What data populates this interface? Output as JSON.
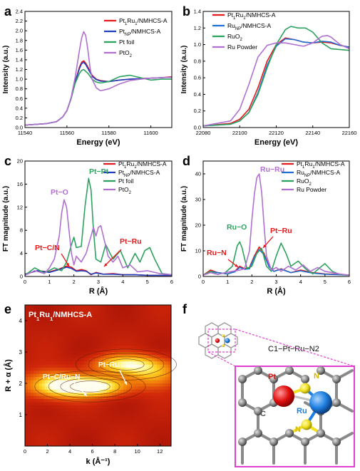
{
  "figure": {
    "panel_letters": [
      "a",
      "b",
      "c",
      "d",
      "e",
      "f"
    ]
  },
  "chart_data": [
    {
      "panel": "a",
      "type": "line",
      "xlabel": "Energy (eV)",
      "ylabel": "Intensity (a.u.)",
      "xlim": [
        11540,
        11610
      ],
      "ylim": [
        0,
        2.4
      ],
      "xticks": [
        "11540",
        "11560",
        "11580",
        "11600"
      ],
      "yticks": [
        "0.0",
        "0.2",
        "0.4",
        "0.6",
        "0.8",
        "1.0",
        "1.2",
        "1.4",
        "1.6",
        "1.8",
        "2.0",
        "2.2",
        "2.4"
      ],
      "legend": "top-right",
      "series": [
        {
          "name": "Pt1Ru1/NMHCS-A",
          "color": "#e41a1c",
          "x": [
            11540,
            11550,
            11555,
            11558,
            11560,
            11562,
            11564,
            11566,
            11567,
            11568,
            11569,
            11570,
            11572,
            11574,
            11576,
            11580,
            11585,
            11590,
            11595,
            11600,
            11605,
            11610
          ],
          "y": [
            0.05,
            0.08,
            0.12,
            0.22,
            0.35,
            0.6,
            0.95,
            1.25,
            1.35,
            1.38,
            1.33,
            1.25,
            1.08,
            1.0,
            0.97,
            0.95,
            0.98,
            1.0,
            1.01,
            1.02,
            1.03,
            1.05
          ]
        },
        {
          "name": "PtNP/NMHCS-A",
          "color": "#1f3fbf",
          "x": [
            11540,
            11550,
            11555,
            11558,
            11560,
            11562,
            11564,
            11566,
            11567,
            11568,
            11569,
            11570,
            11572,
            11574,
            11576,
            11580,
            11585,
            11590,
            11595,
            11600,
            11605,
            11610
          ],
          "y": [
            0.05,
            0.08,
            0.12,
            0.22,
            0.35,
            0.6,
            0.95,
            1.22,
            1.32,
            1.35,
            1.3,
            1.22,
            1.06,
            0.99,
            0.96,
            0.95,
            0.98,
            1.0,
            1.01,
            1.02,
            1.03,
            1.04
          ]
        },
        {
          "name": "Pt foil",
          "color": "#2ca25f",
          "x": [
            11540,
            11550,
            11555,
            11558,
            11560,
            11562,
            11564,
            11566,
            11567,
            11568,
            11570,
            11572,
            11574,
            11576,
            11580,
            11585,
            11590,
            11595,
            11600,
            11605,
            11610
          ],
          "y": [
            0.05,
            0.08,
            0.12,
            0.22,
            0.35,
            0.6,
            0.92,
            1.12,
            1.18,
            1.2,
            1.12,
            1.0,
            0.94,
            0.92,
            0.95,
            1.05,
            1.08,
            1.03,
            0.98,
            1.0,
            1.0
          ]
        },
        {
          "name": "PtO2",
          "color": "#b070d0",
          "x": [
            11540,
            11550,
            11555,
            11558,
            11560,
            11562,
            11564,
            11566,
            11567,
            11568,
            11569,
            11570,
            11571,
            11572,
            11574,
            11576,
            11580,
            11585,
            11590,
            11595,
            11600,
            11605,
            11610
          ],
          "y": [
            0.05,
            0.08,
            0.12,
            0.22,
            0.35,
            0.62,
            1.05,
            1.6,
            1.85,
            1.98,
            1.9,
            1.6,
            1.25,
            1.0,
            0.82,
            0.76,
            0.8,
            0.9,
            0.97,
            1.0,
            1.02,
            1.03,
            1.04
          ]
        }
      ]
    },
    {
      "panel": "b",
      "type": "line",
      "xlabel": "Energy (eV)",
      "ylabel": "Intensity (a.u.)",
      "xlim": [
        22080,
        22160
      ],
      "ylim": [
        0,
        1.4
      ],
      "xticks": [
        "22080",
        "22100",
        "22120",
        "22140",
        "22160"
      ],
      "yticks": [
        "0.0",
        "0.2",
        "0.4",
        "0.6",
        "0.8",
        "1.0",
        "1.2",
        "1.4"
      ],
      "legend": "top-left",
      "series": [
        {
          "name": "Pt1Ru1/NMHCS-A",
          "color": "#e41a1c",
          "x": [
            22080,
            22095,
            22100,
            22105,
            22110,
            22115,
            22120,
            22125,
            22130,
            22135,
            22140,
            22145,
            22150,
            22155,
            22160
          ],
          "y": [
            0.02,
            0.05,
            0.1,
            0.22,
            0.48,
            0.8,
            1.0,
            1.08,
            1.06,
            1.03,
            1.02,
            1.03,
            1.02,
            0.99,
            0.97
          ]
        },
        {
          "name": "RuNP/NMHCS-A",
          "color": "#1f6fd0",
          "x": [
            22080,
            22095,
            22100,
            22105,
            22110,
            22115,
            22120,
            22125,
            22130,
            22135,
            22140,
            22145,
            22150,
            22155,
            22160
          ],
          "y": [
            0.02,
            0.04,
            0.08,
            0.18,
            0.42,
            0.75,
            0.98,
            1.07,
            1.06,
            1.03,
            1.02,
            1.04,
            1.03,
            0.99,
            0.97
          ]
        },
        {
          "name": "RuO2",
          "color": "#2ca25f",
          "x": [
            22080,
            22095,
            22100,
            22105,
            22110,
            22115,
            22120,
            22125,
            22128,
            22132,
            22136,
            22140,
            22145,
            22150,
            22155,
            22160
          ],
          "y": [
            0.02,
            0.04,
            0.08,
            0.18,
            0.4,
            0.72,
            1.0,
            1.18,
            1.22,
            1.2,
            1.2,
            1.15,
            1.02,
            0.95,
            0.94,
            0.93
          ]
        },
        {
          "name": "Ru Powder",
          "color": "#b070d0",
          "x": [
            22080,
            22095,
            22100,
            22105,
            22110,
            22115,
            22120,
            22125,
            22130,
            22135,
            22140,
            22145,
            22148,
            22150,
            22155,
            22160
          ],
          "y": [
            0.02,
            0.08,
            0.22,
            0.52,
            0.85,
            0.99,
            1.02,
            1.02,
            1.0,
            0.98,
            1.02,
            1.1,
            1.11,
            1.09,
            1.0,
            0.95
          ]
        }
      ]
    },
    {
      "panel": "c",
      "type": "line",
      "xlabel": "R (Å)",
      "ylabel": "FT magnitude (a.u.)",
      "xlim": [
        0,
        6
      ],
      "ylim": [
        0,
        20
      ],
      "xticks": [
        "0",
        "1",
        "2",
        "3",
        "4",
        "5",
        "6"
      ],
      "yticks": [
        "0",
        "4",
        "8",
        "12",
        "16",
        "20"
      ],
      "legend": "top-right",
      "annotations": [
        "Pt−O",
        "Pt−Pt",
        "Pt−C/N",
        "Pt−Ru"
      ],
      "series": [
        {
          "name": "Pt1Ru1/NMHCS-A",
          "color": "#e41a1c",
          "x": [
            0,
            0.5,
            1.0,
            1.4,
            1.7,
            1.9,
            2.1,
            2.3,
            2.5,
            2.7,
            2.9,
            3.2,
            3.6,
            4.0,
            4.5,
            5.0,
            5.5,
            6.0
          ],
          "y": [
            0.4,
            1.0,
            0.8,
            1.3,
            1.8,
            1.6,
            1.0,
            1.2,
            1.0,
            0.3,
            0.7,
            0.4,
            0.5,
            0.3,
            0.3,
            0.2,
            0.2,
            0.2
          ]
        },
        {
          "name": "PtNP/NMHCS-A",
          "color": "#1f3fbf",
          "x": [
            0,
            0.5,
            1.0,
            1.4,
            1.7,
            1.9,
            2.1,
            2.3,
            2.5,
            2.7,
            2.9,
            3.2,
            3.6,
            4.0,
            4.5,
            5.0,
            5.5,
            6.0
          ],
          "y": [
            0.4,
            1.0,
            0.7,
            1.2,
            1.6,
            1.4,
            0.9,
            1.0,
            0.9,
            0.4,
            0.6,
            0.4,
            0.4,
            0.3,
            0.3,
            0.2,
            0.2,
            0.2
          ]
        },
        {
          "name": "Pt foil",
          "color": "#2ca25f",
          "x": [
            0,
            0.4,
            0.8,
            1.2,
            1.5,
            1.7,
            1.9,
            2.0,
            2.1,
            2.3,
            2.45,
            2.6,
            2.7,
            2.8,
            2.9,
            3.1,
            3.3,
            3.6,
            3.9,
            4.2,
            4.5,
            4.7,
            4.9,
            5.1,
            5.3,
            5.6,
            6.0
          ],
          "y": [
            0.2,
            1.5,
            0.6,
            1.5,
            1.0,
            2.5,
            5.5,
            6.8,
            5.0,
            5.2,
            12.0,
            17.0,
            15.0,
            8.0,
            3.0,
            2.5,
            5.5,
            3.0,
            4.5,
            1.5,
            4.0,
            2.5,
            4.5,
            5.0,
            3.0,
            0.5,
            0.3
          ]
        },
        {
          "name": "PtO2",
          "color": "#b070d0",
          "x": [
            0,
            0.4,
            0.8,
            1.0,
            1.2,
            1.4,
            1.5,
            1.6,
            1.7,
            1.8,
            1.9,
            2.0,
            2.1,
            2.3,
            2.5,
            2.7,
            2.8,
            2.9,
            3.0,
            3.1,
            3.2,
            3.4,
            3.6,
            3.8,
            4.0,
            4.3,
            4.6,
            5.0,
            5.5,
            6.0
          ],
          "y": [
            0.2,
            1.0,
            0.5,
            1.5,
            3.0,
            7.0,
            11.0,
            13.3,
            12.0,
            8.0,
            4.0,
            2.0,
            3.5,
            2.5,
            4.0,
            7.0,
            8.5,
            7.0,
            8.5,
            8.8,
            7.0,
            3.5,
            2.5,
            3.5,
            1.5,
            2.0,
            0.8,
            1.0,
            0.5,
            0.3
          ]
        }
      ]
    },
    {
      "panel": "d",
      "type": "line",
      "xlabel": "R (Å)",
      "ylabel": "FT magnitude (a.u.)",
      "xlim": [
        0,
        6
      ],
      "ylim": [
        0,
        45
      ],
      "xticks": [
        "0",
        "1",
        "2",
        "3",
        "4",
        "5",
        "6"
      ],
      "yticks": [
        "0",
        "10",
        "20",
        "30",
        "40"
      ],
      "legend": "top-right",
      "annotations": [
        "Ru−Ru",
        "Ru−O",
        "Ru−N",
        "Pt−Ru"
      ],
      "series": [
        {
          "name": "Pt1Ru1/NMHCS-A",
          "color": "#e41a1c",
          "x": [
            0,
            0.3,
            0.6,
            1.0,
            1.3,
            1.5,
            1.7,
            1.9,
            2.1,
            2.3,
            2.5,
            2.7,
            2.9,
            3.2,
            3.6,
            4.0,
            4.5,
            5.0,
            5.5,
            6.0
          ],
          "y": [
            0.5,
            2.5,
            1.5,
            1.0,
            2.0,
            4.0,
            3.0,
            3.5,
            8.0,
            11.5,
            9.0,
            4.0,
            2.0,
            3.0,
            1.5,
            2.5,
            1.5,
            1.0,
            0.8,
            0.5
          ]
        },
        {
          "name": "RuNP/NMHCS-A",
          "color": "#1f6fd0",
          "x": [
            0,
            0.3,
            0.6,
            1.0,
            1.3,
            1.5,
            1.7,
            1.9,
            2.1,
            2.3,
            2.5,
            2.7,
            2.9,
            3.2,
            3.6,
            4.0,
            4.5,
            5.0,
            5.5,
            6.0
          ],
          "y": [
            0.5,
            2.0,
            1.5,
            1.0,
            1.8,
            3.5,
            2.8,
            3.0,
            7.5,
            10.5,
            8.5,
            3.8,
            2.0,
            2.8,
            1.5,
            2.2,
            1.3,
            0.9,
            0.7,
            0.5
          ]
        },
        {
          "name": "RuO2",
          "color": "#2ca25f",
          "x": [
            0,
            0.3,
            0.6,
            0.9,
            1.2,
            1.4,
            1.5,
            1.6,
            1.8,
            2.0,
            2.2,
            2.4,
            2.6,
            2.8,
            3.0,
            3.2,
            3.4,
            3.6,
            3.9,
            4.2,
            4.5,
            4.8,
            5.0,
            5.3,
            5.6,
            6.0
          ],
          "y": [
            0.5,
            2.0,
            0.8,
            1.5,
            4.0,
            12.0,
            13.5,
            11.0,
            3.0,
            4.0,
            9.0,
            11.0,
            4.0,
            2.0,
            8.0,
            13.0,
            9.0,
            4.0,
            6.0,
            3.0,
            1.0,
            3.5,
            5.0,
            2.0,
            0.8,
            0.5
          ]
        },
        {
          "name": "Ru Powder",
          "color": "#b070d0",
          "x": [
            0,
            0.3,
            0.6,
            0.9,
            1.2,
            1.5,
            1.7,
            1.9,
            2.0,
            2.1,
            2.2,
            2.3,
            2.4,
            2.5,
            2.6,
            2.8,
            3.0,
            3.2,
            3.5,
            3.8,
            4.1,
            4.4,
            4.7,
            5.0,
            5.3,
            5.6,
            6.0
          ],
          "y": [
            0.5,
            1.5,
            0.8,
            1.5,
            2.0,
            2.5,
            3.0,
            10.0,
            22.0,
            32.0,
            38.5,
            40.0,
            33.0,
            20.0,
            8.0,
            2.5,
            3.5,
            2.0,
            4.0,
            2.5,
            4.5,
            2.0,
            3.5,
            2.0,
            1.5,
            1.0,
            0.5
          ]
        }
      ]
    },
    {
      "panel": "e",
      "type": "heatmap",
      "title": "Pt1Ru1/NMHCS-A",
      "xlabel": "k (Å⁻¹)",
      "ylabel": "R + α (Å)",
      "xlim": [
        0,
        13
      ],
      "ylim": [
        0,
        4.5
      ],
      "xticks": [
        "0",
        "2",
        "4",
        "6",
        "8",
        "10",
        "12"
      ],
      "yticks": [
        "1",
        "2",
        "3",
        "4"
      ],
      "annotations": [
        "Pt−C/Ru−N",
        "Pt−Ru"
      ],
      "peaks": [
        {
          "k": 5.8,
          "r": 1.9,
          "amp": 1.0,
          "sk": 2.2,
          "sr": 0.22
        },
        {
          "k": 9.0,
          "r": 2.6,
          "amp": 0.72,
          "sk": 2.0,
          "sr": 0.22
        },
        {
          "k": 2.5,
          "r": 1.95,
          "amp": 0.6,
          "sk": 1.8,
          "sr": 0.3
        },
        {
          "k": 11.5,
          "r": 2.3,
          "amp": 0.45,
          "sk": 1.6,
          "sr": 0.3
        }
      ]
    }
  ],
  "structure": {
    "title": "C1−Pt−Ru−N2",
    "atoms": [
      "Pt",
      "Ru",
      "N",
      "N",
      "C"
    ],
    "colors": {
      "Pt": "#e01010",
      "Ru": "#1f7fe0",
      "N": "#f0e020",
      "C": "#8a8a8a",
      "frame": "#e040d0"
    }
  }
}
